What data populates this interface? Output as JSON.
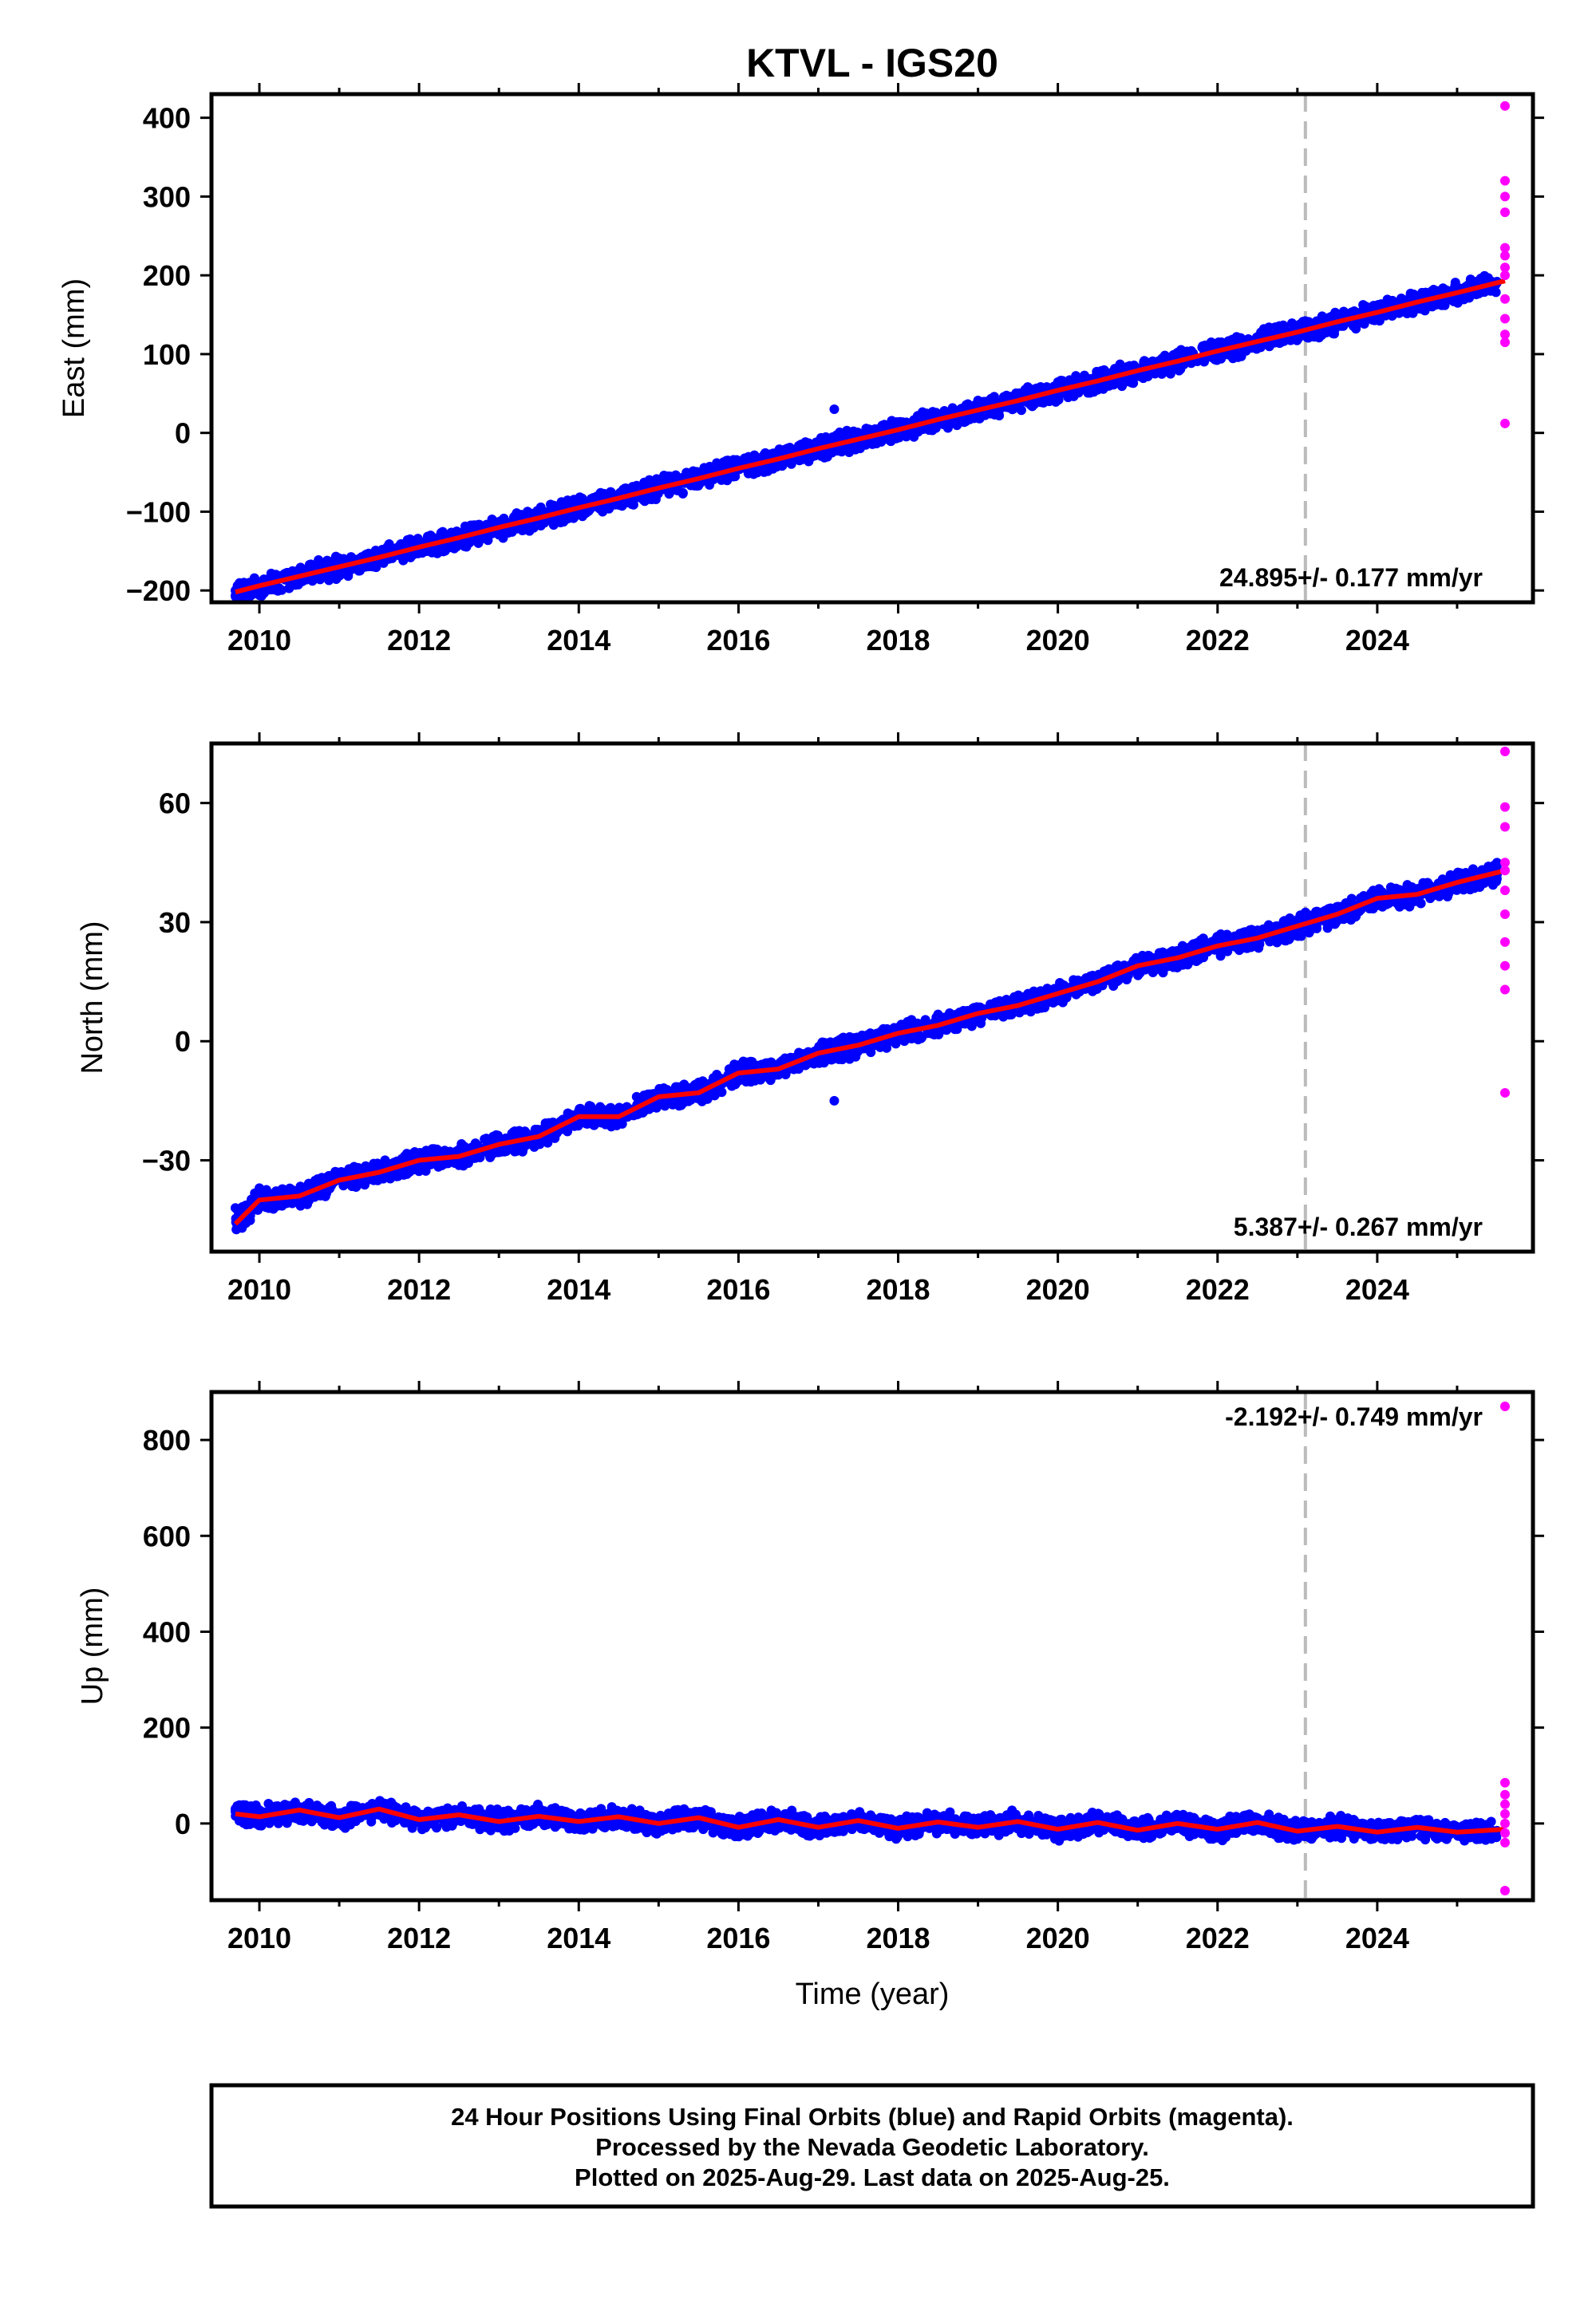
{
  "title": "KTVL - IGS20",
  "colors": {
    "final_points": "#0000ff",
    "rapid_points": "#ff00ff",
    "trend_line": "#ff0000",
    "dashed_marker": "#bbbbbb",
    "frame": "#000000"
  },
  "chart_data": [
    {
      "type": "scatter",
      "ylabel": "East (mm)",
      "xlabel": "",
      "xlim": [
        2009.4,
        2025.95
      ],
      "ylim": [
        -215,
        430
      ],
      "xticks": [
        2010,
        2012,
        2014,
        2016,
        2018,
        2020,
        2022,
        2024
      ],
      "xtick_labels": [
        "2010",
        "2012",
        "2014",
        "2016",
        "2018",
        "2020",
        "2022",
        "2024"
      ],
      "yticks": [
        -200,
        -100,
        0,
        100,
        200,
        300,
        400
      ],
      "ytick_labels": [
        "−200",
        "−100",
        "0",
        "100",
        "200",
        "300",
        "400"
      ],
      "rate_text": "24.895+/- 0.177 mm/yr",
      "rate_position": "bottom-right",
      "dashed_line_x": 2023.1,
      "series": [
        {
          "kind": "final",
          "x": [
            2009.7,
            2010.0,
            2010.5,
            2011.0,
            2011.5,
            2012.0,
            2012.5,
            2013.0,
            2013.5,
            2014.0,
            2014.5,
            2015.0,
            2015.5,
            2016.0,
            2016.5,
            2017.0,
            2017.2,
            2017.5,
            2018.0,
            2018.5,
            2019.0,
            2019.5,
            2020.0,
            2020.5,
            2021.0,
            2021.5,
            2022.0,
            2022.5,
            2023.0,
            2023.5,
            2024.0,
            2024.5,
            2025.0,
            2025.5
          ],
          "y": [
            -200,
            -193,
            -180,
            -171,
            -157,
            -145,
            -131,
            -118,
            -106,
            -93,
            -79,
            -68,
            -56,
            -43,
            -30,
            -18,
            30,
            -5,
            0,
            12,
            26,
            36,
            48,
            61,
            75,
            87,
            99,
            113,
            125,
            140,
            152,
            164,
            177,
            192
          ]
        },
        {
          "kind": "rapid",
          "x": [
            2025.6,
            2025.6,
            2025.6,
            2025.6,
            2025.6,
            2025.6,
            2025.6,
            2025.6,
            2025.6,
            2025.6,
            2025.6,
            2025.6,
            2025.6
          ],
          "y": [
            415,
            320,
            300,
            280,
            235,
            225,
            210,
            200,
            170,
            145,
            125,
            115,
            12
          ]
        },
        {
          "kind": "trend",
          "x": [
            2009.7,
            2010.0,
            2010.5,
            2011.0,
            2011.5,
            2012.0,
            2012.5,
            2013.0,
            2013.5,
            2014.0,
            2014.5,
            2015.0,
            2015.5,
            2016.0,
            2016.5,
            2017.0,
            2017.5,
            2018.0,
            2018.5,
            2019.0,
            2019.5,
            2020.0,
            2020.5,
            2021.0,
            2021.5,
            2022.0,
            2022.5,
            2023.0,
            2023.5,
            2024.0,
            2024.5,
            2025.0,
            2025.6
          ],
          "y": [
            -202,
            -194,
            -182,
            -170,
            -158,
            -145,
            -133,
            -120,
            -108,
            -95,
            -83,
            -70,
            -58,
            -45,
            -33,
            -20,
            -8,
            4,
            17,
            29,
            41,
            54,
            66,
            79,
            91,
            104,
            116,
            128,
            141,
            153,
            166,
            178,
            193
          ]
        }
      ]
    },
    {
      "type": "scatter",
      "ylabel": "North (mm)",
      "xlabel": "",
      "xlim": [
        2009.4,
        2025.95
      ],
      "ylim": [
        -53,
        75
      ],
      "xticks": [
        2010,
        2012,
        2014,
        2016,
        2018,
        2020,
        2022,
        2024
      ],
      "xtick_labels": [
        "2010",
        "2012",
        "2014",
        "2016",
        "2018",
        "2020",
        "2022",
        "2024"
      ],
      "yticks": [
        -30,
        0,
        30,
        60
      ],
      "ytick_labels": [
        "−30",
        "0",
        "30",
        "60"
      ],
      "rate_text": "5.387+/- 0.267 mm/yr",
      "rate_position": "bottom-right",
      "dashed_line_x": 2023.1,
      "series": [
        {
          "kind": "final",
          "x": [
            2009.7,
            2010.0,
            2010.5,
            2011.0,
            2011.5,
            2012.0,
            2012.5,
            2013.0,
            2013.5,
            2014.0,
            2014.5,
            2015.0,
            2015.5,
            2016.0,
            2016.5,
            2017.0,
            2017.2,
            2017.5,
            2018.0,
            2018.5,
            2019.0,
            2019.5,
            2020.0,
            2020.5,
            2021.0,
            2021.5,
            2022.0,
            2022.5,
            2023.0,
            2023.5,
            2024.0,
            2024.5,
            2025.0,
            2025.5
          ],
          "y": [
            -42,
            -37,
            -39,
            -35,
            -33,
            -31,
            -29,
            -27,
            -24,
            -20,
            -19,
            -16,
            -13,
            -10,
            -7,
            -4,
            -15,
            -1,
            2,
            4,
            7,
            9,
            12,
            15,
            18,
            21,
            23,
            26,
            29,
            32,
            35,
            37,
            40,
            42
          ]
        },
        {
          "kind": "rapid",
          "x": [
            2025.6,
            2025.6,
            2025.6,
            2025.6,
            2025.6,
            2025.6,
            2025.6,
            2025.6,
            2025.6,
            2025.6,
            2025.6
          ],
          "y": [
            73,
            59,
            54,
            45,
            43,
            38,
            32,
            25,
            19,
            13,
            -13
          ]
        },
        {
          "kind": "trend",
          "x": [
            2009.7,
            2010.0,
            2010.5,
            2011.0,
            2011.5,
            2012.0,
            2012.5,
            2013.0,
            2013.5,
            2014.0,
            2014.5,
            2015.0,
            2015.5,
            2016.0,
            2016.5,
            2017.0,
            2017.5,
            2018.0,
            2018.5,
            2019.0,
            2019.5,
            2020.0,
            2020.5,
            2021.0,
            2021.5,
            2022.0,
            2022.5,
            2023.0,
            2023.5,
            2024.0,
            2024.5,
            2025.0,
            2025.6
          ],
          "y": [
            -46,
            -40,
            -39,
            -35,
            -33,
            -30,
            -29,
            -26,
            -24,
            -19,
            -19,
            -14,
            -13,
            -8,
            -7,
            -3,
            -1,
            2,
            4,
            7,
            9,
            12,
            15,
            19,
            21,
            24,
            26,
            29,
            32,
            36,
            37,
            40,
            43
          ]
        }
      ]
    },
    {
      "type": "scatter",
      "ylabel": "Up (mm)",
      "xlabel": "Time (year)",
      "xlim": [
        2009.4,
        2025.95
      ],
      "ylim": [
        -160,
        900
      ],
      "xticks": [
        2010,
        2012,
        2014,
        2016,
        2018,
        2020,
        2022,
        2024
      ],
      "xtick_labels": [
        "2010",
        "2012",
        "2014",
        "2016",
        "2018",
        "2020",
        "2022",
        "2024"
      ],
      "yticks": [
        0,
        200,
        400,
        600,
        800
      ],
      "ytick_labels": [
        "0",
        "200",
        "400",
        "600",
        "800"
      ],
      "rate_text": "-2.192+/- 0.749 mm/yr",
      "rate_position": "top-right",
      "dashed_line_x": 2023.1,
      "series": [
        {
          "kind": "final",
          "x": [
            2009.7,
            2010.0,
            2010.5,
            2011.0,
            2011.5,
            2012.0,
            2012.5,
            2013.0,
            2013.5,
            2014.0,
            2014.5,
            2015.0,
            2015.5,
            2016.0,
            2016.5,
            2017.0,
            2017.5,
            2018.0,
            2018.5,
            2019.0,
            2019.5,
            2020.0,
            2020.5,
            2021.0,
            2021.5,
            2022.0,
            2022.5,
            2023.0,
            2023.5,
            2024.0,
            2024.5,
            2025.0,
            2025.5
          ],
          "y": [
            25,
            15,
            30,
            15,
            32,
            10,
            20,
            5,
            18,
            5,
            16,
            2,
            15,
            -10,
            10,
            -8,
            10,
            -10,
            5,
            -8,
            5,
            -12,
            3,
            -15,
            0,
            -12,
            2,
            -18,
            -5,
            -20,
            -8,
            -20,
            -15
          ]
        },
        {
          "kind": "rapid",
          "x": [
            2025.6,
            2025.6,
            2025.6,
            2025.6,
            2025.6,
            2025.6,
            2025.6,
            2025.6,
            2025.6
          ],
          "y": [
            870,
            85,
            60,
            40,
            20,
            0,
            -20,
            -40,
            -140
          ]
        },
        {
          "kind": "trend",
          "x": [
            2009.7,
            2010.0,
            2010.5,
            2011.0,
            2011.5,
            2012.0,
            2012.5,
            2013.0,
            2013.5,
            2014.0,
            2014.5,
            2015.0,
            2015.5,
            2016.0,
            2016.5,
            2017.0,
            2017.5,
            2018.0,
            2018.5,
            2019.0,
            2019.5,
            2020.0,
            2020.5,
            2021.0,
            2021.5,
            2022.0,
            2022.5,
            2023.0,
            2023.5,
            2024.0,
            2024.5,
            2025.0,
            2025.6
          ],
          "y": [
            20,
            14,
            28,
            12,
            30,
            8,
            18,
            4,
            15,
            4,
            14,
            0,
            12,
            -8,
            8,
            -8,
            6,
            -10,
            3,
            -8,
            4,
            -12,
            2,
            -14,
            0,
            -12,
            2,
            -16,
            -6,
            -18,
            -8,
            -18,
            -12
          ]
        }
      ]
    }
  ],
  "footer": {
    "line1": "24 Hour Positions Using Final Orbits (blue) and Rapid Orbits (magenta).",
    "line2": "Processed by the Nevada Geodetic Laboratory.",
    "line3": "Plotted on 2025-Aug-29. Last data on 2025-Aug-25."
  }
}
